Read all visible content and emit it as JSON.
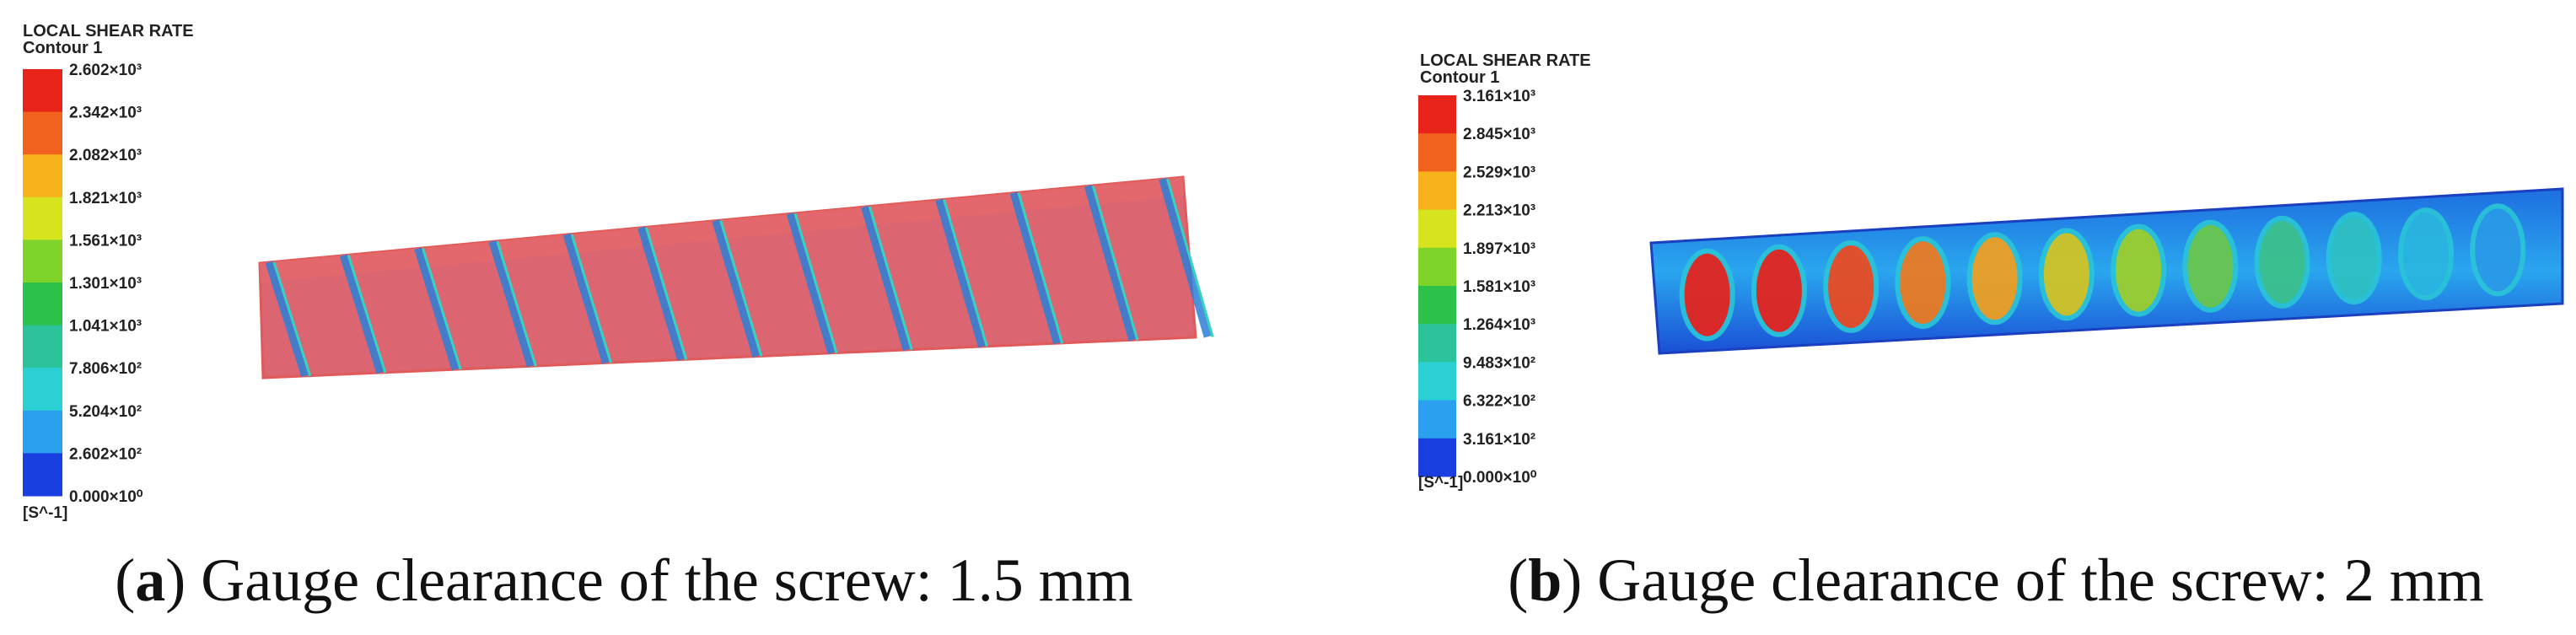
{
  "panels": [
    {
      "legend": {
        "title": "LOCAL SHEAR RATE",
        "subtitle": "Contour 1",
        "labels": [
          "2.602×10³",
          "2.342×10³",
          "2.082×10³",
          "1.821×10³",
          "1.561×10³",
          "1.301×10³",
          "1.041×10³",
          "7.806×10²",
          "5.204×10²",
          "2.602×10²",
          "0.000×10⁰"
        ],
        "unit": "[S^-1]"
      },
      "caption": [
        "(",
        "a",
        ") Gauge clearance of the screw: 1.5 mm"
      ]
    },
    {
      "legend": {
        "title": "LOCAL SHEAR RATE",
        "subtitle": "Contour 1",
        "labels": [
          "3.161×10³",
          "2.845×10³",
          "2.529×10³",
          "2.213×10³",
          "1.897×10³",
          "1.581×10³",
          "1.264×10³",
          "9.483×10²",
          "6.322×10²",
          "3.161×10²",
          "0.000×10⁰"
        ],
        "unit": "[S^-1]"
      },
      "caption": [
        "(",
        "b",
        ") Gauge clearance of the screw: 2 mm"
      ]
    }
  ]
}
